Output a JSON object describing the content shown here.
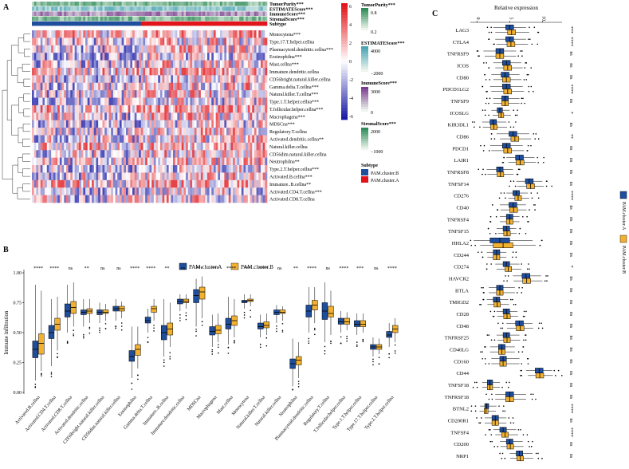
{
  "figure": {
    "panel_a_letter": "A",
    "panel_b_letter": "B",
    "panel_c_letter": "C"
  },
  "colors": {
    "cluster_a": "#1f4e9c",
    "cluster_b": "#f2b130",
    "heat_low": "#1a1aa6",
    "heat_mid": "#ffffff",
    "heat_high": "#e0141a",
    "tumor": "#2e8b57",
    "estimate": "#4aa3b5",
    "immune": "#7a3e8f",
    "stromal": "#2e8b57"
  },
  "panel_a": {
    "annotation_tracks": [
      "TumorPurity***",
      "ESTIMATEScore***",
      "ImmuneScore***",
      "StromalScore***",
      "Subtype"
    ],
    "rows": [
      "Monocytena***",
      "Type.17.T.helper.cellna",
      "Plasmacytoid.dendritic.cellna***",
      "Eosinophilna***",
      "Mast.cellna***",
      "Immature.dendritic.cellna",
      "CD56bright.natural.killer.cellna",
      "Gamma.delta.T.cellna***",
      "Natural.killer.T.cellna***",
      "Type.1.T.helper.cellna***",
      "T.follicular.helper.cellna***",
      "Macrophagena***",
      "MDSCna***",
      "Regulatory.T.cellna",
      "Activated.dendritic.cellna**",
      "Natural.killer.cellna",
      "CD56dim.natural.killer.cellna",
      "Neutrophilna**",
      "Type.2.T.helper.cellna***",
      "Activated.B.cellna***",
      "Immature..B.cellna**",
      "Activated.CD4.T.cellna***",
      "Activated.CD8.T.cellna"
    ],
    "colorbar_ticks": [
      "6",
      "4",
      "2",
      "0",
      "-2",
      "-4",
      "-6"
    ],
    "legends": {
      "tumor_title": "TumorPurity***",
      "tumor_ticks": [
        "0.8",
        "0.2"
      ],
      "estimate_title": "ESTIMATEScore***",
      "estimate_ticks": [
        "4000",
        "−2000"
      ],
      "immune_title": "ImmuneScore***",
      "immune_ticks": [
        "3000",
        "0"
      ],
      "stromal_title": "StromalScore***",
      "stromal_ticks": [
        "2000",
        "−1000"
      ],
      "subtype_title": "Subtype",
      "subtype_b": "PAM.cluster.B",
      "subtype_a": "PAM.cluster.A"
    }
  },
  "chart_data": [
    {
      "type": "box",
      "panel": "B",
      "ylabel": "Immune infiltration",
      "ylim": [
        0,
        1.0
      ],
      "yticks": [
        "0.00",
        "0.25",
        "0.50",
        "0.75",
        "1.00"
      ],
      "legend": [
        "PAM.cluster.A",
        "PAM.cluster.B"
      ],
      "categories": [
        "Activated.B.cellna",
        "Activated.CD4.T.cellna",
        "Activated.CD8.T.cellna",
        "Activated.dendritic.cellna",
        "CD56bright.natural.killer.cellna",
        "CD56dim.natural.killer.cellna",
        "Eosinophilna",
        "Gamma.delta.T.cellna",
        "Immature..B.cellna",
        "Immature.dendritic.cellna",
        "MDSCna",
        "Macrophagena",
        "Mast.cellna",
        "Monocytena",
        "Natural.killer.T.cellna",
        "Natural.killer.cellna",
        "Neutrophilna",
        "Plasmacytoid.dendritic.cellna",
        "Regulatory.T.cellna",
        "T.follicular.helper.cellna",
        "Type.1.T.helper.cellna",
        "Type.17.T.helper.cellna",
        "Type.2.T.helper.cellna"
      ],
      "significance": [
        "****",
        "****",
        "ns",
        "**",
        "ns",
        "ns",
        "****",
        "****",
        "**",
        "ns",
        "***",
        "***",
        "****",
        "***",
        "****",
        "ns",
        "**",
        "****",
        "ns",
        "****",
        "***",
        "ns",
        "****"
      ],
      "series": [
        {
          "name": "PAM.cluster.A",
          "median": [
            0.36,
            0.5,
            0.68,
            0.67,
            0.67,
            0.7,
            0.3,
            0.6,
            0.5,
            0.76,
            0.81,
            0.51,
            0.57,
            0.76,
            0.55,
            0.67,
            0.24,
            0.68,
            0.68,
            0.59,
            0.57,
            0.38,
            0.48
          ],
          "q1": [
            0.29,
            0.45,
            0.63,
            0.65,
            0.65,
            0.68,
            0.26,
            0.58,
            0.44,
            0.74,
            0.75,
            0.48,
            0.53,
            0.75,
            0.53,
            0.65,
            0.2,
            0.63,
            0.61,
            0.57,
            0.55,
            0.36,
            0.46
          ],
          "q3": [
            0.43,
            0.56,
            0.74,
            0.69,
            0.69,
            0.72,
            0.35,
            0.63,
            0.56,
            0.78,
            0.86,
            0.55,
            0.62,
            0.77,
            0.58,
            0.69,
            0.28,
            0.73,
            0.75,
            0.62,
            0.6,
            0.4,
            0.51
          ],
          "min": [
            0.1,
            0.22,
            0.5,
            0.55,
            0.58,
            0.6,
            0.12,
            0.5,
            0.3,
            0.68,
            0.55,
            0.38,
            0.4,
            0.7,
            0.46,
            0.58,
            0.05,
            0.5,
            0.42,
            0.5,
            0.48,
            0.3,
            0.38
          ],
          "max": [
            0.9,
            0.78,
            0.9,
            0.78,
            0.75,
            0.78,
            0.55,
            0.7,
            0.78,
            0.82,
            0.95,
            0.65,
            0.8,
            0.82,
            0.65,
            0.73,
            0.45,
            0.88,
            0.92,
            0.68,
            0.66,
            0.46,
            0.58
          ]
        },
        {
          "name": "PAM.cluster.B",
          "median": [
            0.41,
            0.57,
            0.71,
            0.68,
            0.67,
            0.7,
            0.36,
            0.7,
            0.53,
            0.76,
            0.84,
            0.52,
            0.6,
            0.77,
            0.56,
            0.67,
            0.27,
            0.73,
            0.66,
            0.59,
            0.57,
            0.38,
            0.53
          ],
          "q1": [
            0.32,
            0.52,
            0.66,
            0.66,
            0.66,
            0.68,
            0.31,
            0.67,
            0.48,
            0.75,
            0.78,
            0.49,
            0.56,
            0.76,
            0.54,
            0.66,
            0.23,
            0.69,
            0.63,
            0.57,
            0.55,
            0.36,
            0.5
          ],
          "q3": [
            0.49,
            0.62,
            0.76,
            0.7,
            0.69,
            0.72,
            0.4,
            0.72,
            0.58,
            0.78,
            0.88,
            0.56,
            0.64,
            0.78,
            0.59,
            0.69,
            0.3,
            0.77,
            0.72,
            0.62,
            0.6,
            0.4,
            0.56
          ],
          "min": [
            0.18,
            0.35,
            0.55,
            0.58,
            0.6,
            0.62,
            0.2,
            0.6,
            0.38,
            0.7,
            0.62,
            0.42,
            0.46,
            0.72,
            0.48,
            0.6,
            0.12,
            0.58,
            0.48,
            0.52,
            0.5,
            0.32,
            0.42
          ],
          "max": [
            0.85,
            0.8,
            0.92,
            0.78,
            0.74,
            0.76,
            0.55,
            0.78,
            0.75,
            0.82,
            0.97,
            0.66,
            0.78,
            0.82,
            0.66,
            0.72,
            0.42,
            0.88,
            0.85,
            0.67,
            0.66,
            0.45,
            0.62
          ]
        }
      ]
    },
    {
      "type": "box",
      "panel": "C",
      "title": "Relative expression",
      "xlim": [
        -1,
        13
      ],
      "xticks": [
        "0",
        "5",
        "10"
      ],
      "legend": [
        "PAM.cluster.A",
        "PAM.cluster.B"
      ],
      "categories": [
        "LAG3",
        "CTLA4",
        "TNFRSF9",
        "ICOS",
        "CD80",
        "PDCD1LG2",
        "TNFSF9",
        "ICOSLG",
        "KIR3DL1",
        "CD86",
        "PDCD1",
        "LAIR1",
        "TNFRSF8",
        "TNFSF14",
        "CD276",
        "CD40",
        "TNFRSF4",
        "TNFSF15",
        "HHLA2",
        "CD244",
        "CD274",
        "HAVCR2",
        "BTLA",
        "TMIGD2",
        "CD28",
        "CD48",
        "TNFRSF25",
        "CD40LG",
        "CD160",
        "CD44",
        "TNFSF18",
        "TNFRSF18",
        "BTNL2",
        "CD200R1",
        "TNFSF4",
        "CD200",
        "NRP1"
      ],
      "significance": [
        "***",
        "****",
        "ns",
        "ns",
        "ns",
        "****",
        "ns",
        "*",
        "ns",
        "**",
        "ns",
        "ns",
        "ns",
        "ns",
        "****",
        "ns",
        "ns",
        "ns",
        "ns",
        "ns",
        "*",
        "ns",
        "ns",
        "ns",
        "ns",
        "ns",
        "ns",
        "ns",
        "ns",
        "ns",
        "ns",
        "ns",
        "****",
        "ns",
        "****",
        "ns",
        "ns"
      ],
      "series": [
        {
          "name": "PAM.cluster.A",
          "median": [
            5.0,
            5.0,
            3.5,
            4.5,
            4.3,
            4.5,
            4.3,
            3.5,
            2.5,
            5.5,
            4.5,
            6.5,
            3.5,
            8.0,
            6.0,
            5.5,
            5.0,
            4.5,
            3.5,
            3.0,
            4.5,
            7.5,
            3.5,
            3.0,
            4.5,
            6.5,
            4.5,
            3.8,
            4.0,
            9.5,
            2.0,
            5.0,
            1.5,
            2.8,
            4.0,
            5.0,
            6.5
          ],
          "q1": [
            4.4,
            4.4,
            2.9,
            3.9,
            3.7,
            3.9,
            3.8,
            3.1,
            2.0,
            4.9,
            3.9,
            5.9,
            3.0,
            7.4,
            5.5,
            4.9,
            4.5,
            4.0,
            2.0,
            2.5,
            4.0,
            6.9,
            3.0,
            2.5,
            4.0,
            5.9,
            4.0,
            3.3,
            3.5,
            8.9,
            1.6,
            4.4,
            1.2,
            2.3,
            3.5,
            4.5,
            6.0
          ],
          "q3": [
            5.6,
            5.6,
            4.1,
            5.1,
            4.9,
            5.1,
            4.8,
            3.9,
            3.0,
            6.1,
            5.1,
            7.1,
            4.0,
            8.6,
            6.5,
            6.1,
            5.5,
            5.0,
            5.0,
            3.5,
            5.0,
            8.1,
            4.0,
            3.5,
            5.0,
            7.1,
            5.0,
            4.3,
            4.5,
            10.1,
            2.4,
            5.6,
            1.8,
            3.3,
            4.5,
            5.5,
            7.0
          ],
          "min": [
            2.5,
            2.8,
            1.0,
            2.5,
            2.2,
            2.0,
            2.5,
            2.2,
            0.8,
            3.0,
            2.0,
            4.5,
            1.5,
            6.0,
            4.5,
            3.5,
            3.5,
            3.0,
            -0.5,
            1.5,
            2.8,
            5.5,
            1.8,
            1.5,
            3.0,
            4.5,
            3.0,
            2.0,
            2.2,
            7.5,
            0.8,
            2.8,
            0.5,
            1.2,
            2.5,
            3.5,
            5.0
          ],
          "max": [
            7.5,
            7.5,
            6.0,
            6.8,
            6.5,
            7.0,
            6.5,
            5.0,
            4.5,
            8.0,
            7.0,
            8.8,
            5.5,
            10.0,
            7.8,
            7.5,
            6.5,
            6.0,
            8.5,
            4.5,
            6.5,
            9.8,
            5.8,
            4.8,
            6.2,
            8.5,
            6.5,
            5.8,
            6.5,
            11.5,
            3.5,
            7.5,
            3.0,
            4.5,
            6.0,
            7.0,
            8.5
          ]
        },
        {
          "name": "PAM.cluster.B",
          "median": [
            5.3,
            5.2,
            3.5,
            4.7,
            4.5,
            4.7,
            4.3,
            3.7,
            2.6,
            5.8,
            4.7,
            6.6,
            3.6,
            8.2,
            6.3,
            5.6,
            5.0,
            4.6,
            4.0,
            3.0,
            4.8,
            7.6,
            3.5,
            3.1,
            4.6,
            6.6,
            4.6,
            3.8,
            4.0,
            9.6,
            2.0,
            5.0,
            1.4,
            2.8,
            4.3,
            5.1,
            6.6
          ],
          "q1": [
            4.7,
            4.6,
            2.9,
            4.1,
            3.9,
            4.1,
            3.8,
            3.3,
            2.1,
            5.2,
            4.1,
            6.0,
            3.1,
            7.6,
            5.8,
            5.0,
            4.5,
            4.1,
            2.5,
            2.5,
            4.3,
            7.0,
            3.0,
            2.6,
            4.1,
            6.0,
            4.1,
            3.3,
            3.5,
            9.0,
            1.6,
            4.4,
            1.1,
            2.3,
            3.8,
            4.6,
            6.1
          ],
          "q3": [
            5.9,
            5.8,
            4.1,
            5.3,
            5.1,
            5.3,
            4.8,
            4.1,
            3.1,
            6.4,
            5.3,
            7.2,
            4.1,
            8.8,
            6.8,
            6.2,
            5.5,
            5.1,
            5.5,
            3.5,
            5.3,
            8.2,
            4.0,
            3.6,
            5.1,
            7.2,
            5.1,
            4.3,
            4.5,
            10.2,
            2.4,
            5.6,
            1.7,
            3.3,
            4.8,
            5.6,
            7.1
          ],
          "min": [
            2.8,
            3.0,
            1.2,
            2.8,
            2.5,
            2.2,
            2.5,
            2.4,
            0.9,
            3.5,
            2.2,
            4.8,
            1.6,
            6.2,
            4.8,
            3.6,
            3.5,
            3.2,
            0.5,
            1.6,
            3.0,
            5.6,
            1.8,
            1.6,
            3.1,
            4.6,
            3.1,
            2.0,
            2.2,
            7.8,
            0.8,
            2.8,
            0.4,
            1.2,
            2.8,
            3.6,
            5.1
          ],
          "max": [
            8.0,
            7.8,
            6.0,
            7.0,
            6.8,
            7.2,
            6.5,
            5.2,
            4.6,
            8.3,
            7.2,
            9.0,
            5.6,
            10.2,
            8.0,
            7.6,
            6.5,
            6.1,
            9.0,
            4.5,
            6.8,
            10.0,
            5.8,
            4.9,
            6.3,
            8.6,
            6.6,
            5.8,
            6.5,
            11.6,
            3.5,
            7.5,
            2.9,
            4.5,
            6.3,
            7.1,
            8.6
          ]
        }
      ]
    }
  ]
}
